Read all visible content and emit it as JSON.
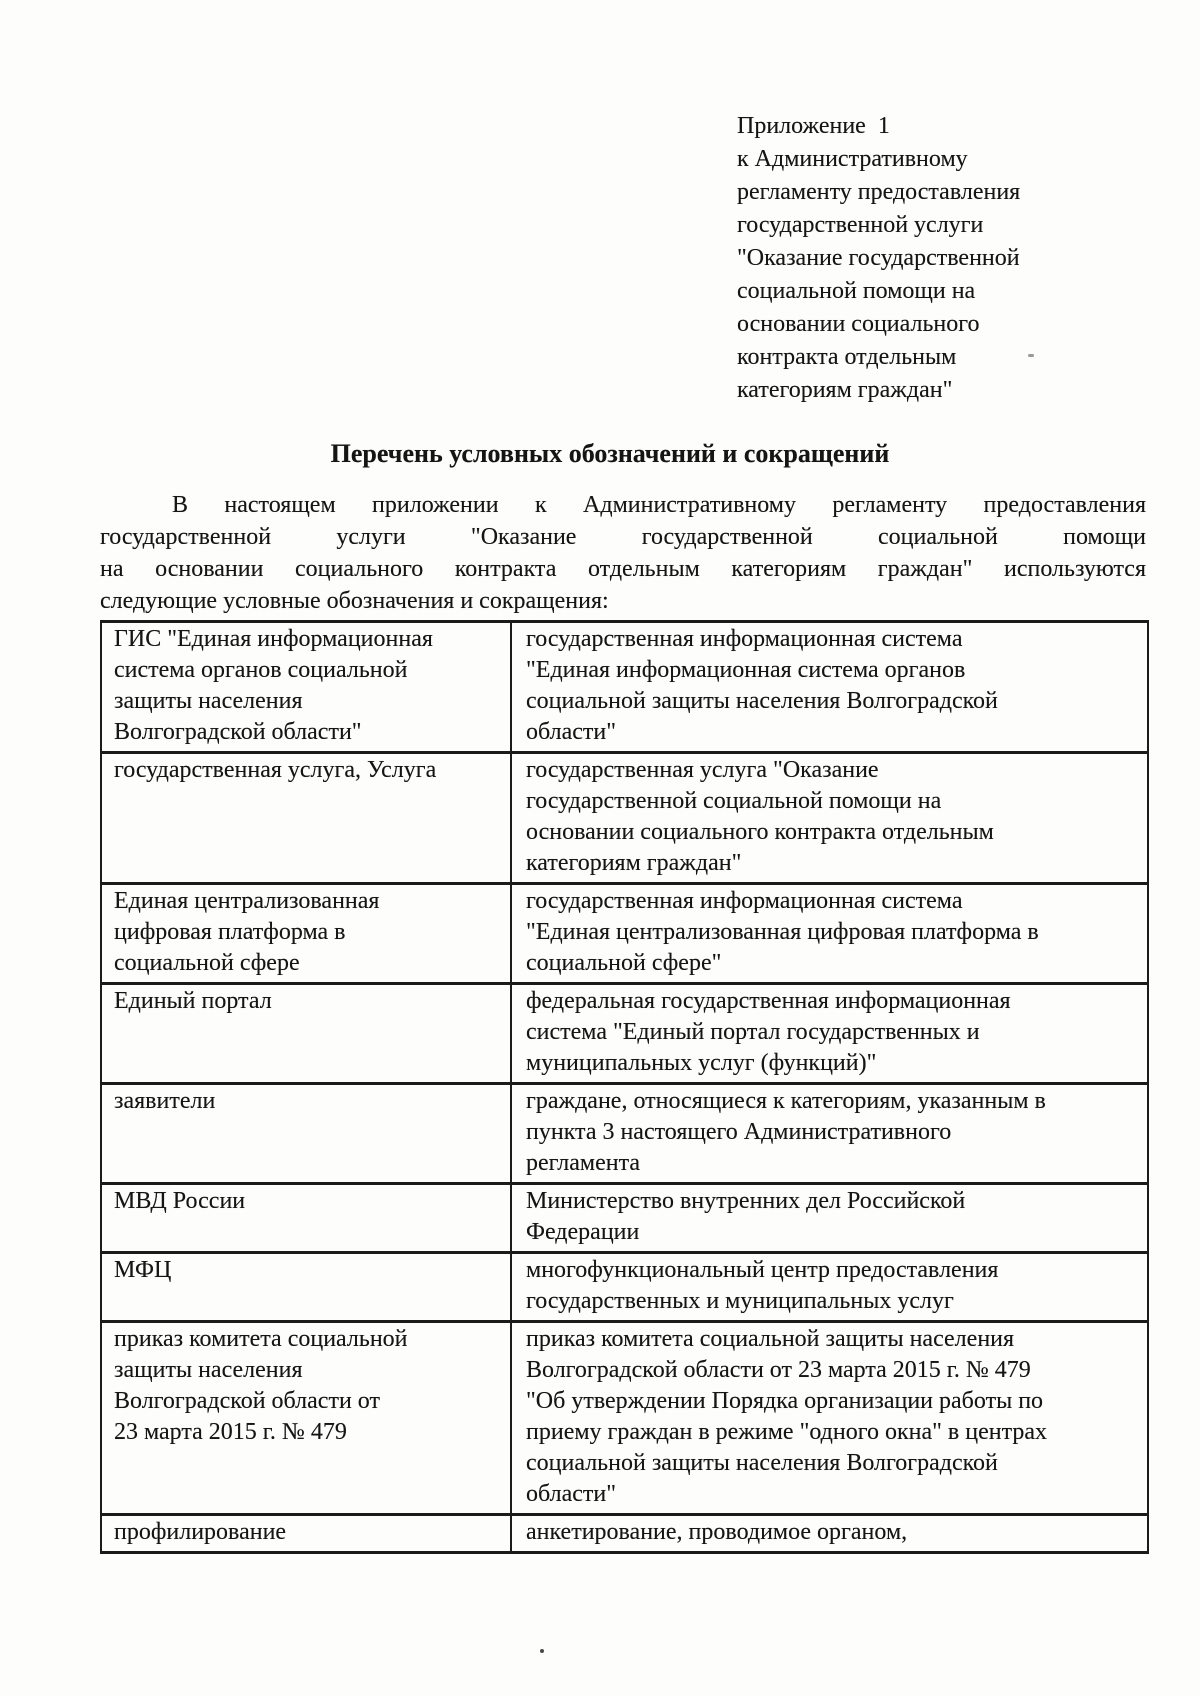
{
  "page": {
    "appendix": {
      "lines": [
        "Приложение  1",
        "к Административному",
        "регламенту предоставления",
        "государственной услуги",
        "\"Оказание государственной",
        "социальной помощи на",
        "основании социального",
        "контракта отдельным",
        "категориям граждан\""
      ]
    },
    "title": "Перечень условных обозначений и сокращений",
    "intro": {
      "lines": [
        "В настоящем приложении к Административному регламенту предоставления",
        "государственной услуги \"Оказание государственной социальной помощи",
        "на основании социального контракта отдельным категориям граждан\" используются",
        "следующие условные обозначения и сокращения:"
      ]
    },
    "table": {
      "rows": [
        {
          "term_lines": [
            "ГИС \"Единая информационная",
            "система органов социальной",
            "защиты населения",
            "Волгоградской области\""
          ],
          "definition_lines": [
            "государственная информационная система",
            "\"Единая информационная система органов",
            "социальной защиты населения Волгоградской",
            "области\""
          ]
        },
        {
          "term_lines": [
            "государственная услуга, Услуга"
          ],
          "definition_lines": [
            "государственная услуга \"Оказание",
            "государственной социальной помощи на",
            "основании социального контракта отдельным",
            "категориям граждан\""
          ]
        },
        {
          "term_lines": [
            "Единая централизованная",
            "цифровая платформа в",
            "социальной сфере"
          ],
          "definition_lines": [
            "государственная информационная система",
            "\"Единая централизованная цифровая платформа в",
            "социальной сфере\""
          ]
        },
        {
          "term_lines": [
            "Единый портал"
          ],
          "definition_lines": [
            "федеральная государственная информационная",
            "система \"Единый портал государственных и",
            "муниципальных услуг (функций)\""
          ]
        },
        {
          "term_lines": [
            "заявители"
          ],
          "definition_lines": [
            "граждане, относящиеся к категориям, указанным в",
            "пункта 3 настоящего Административного",
            "регламента"
          ]
        },
        {
          "term_lines": [
            "МВД России"
          ],
          "definition_lines": [
            "Министерство внутренних дел Российской",
            "Федерации"
          ]
        },
        {
          "term_lines": [
            "МФЦ"
          ],
          "definition_lines": [
            "многофункциональный центр предоставления",
            "государственных и муниципальных услуг"
          ]
        },
        {
          "term_lines": [
            "приказ комитета социальной",
            "защиты населения",
            "Волгоградской области от",
            "23 марта 2015 г. № 479"
          ],
          "definition_lines": [
            "приказ комитета социальной защиты населения",
            "Волгоградской области от 23 марта 2015 г. № 479",
            "\"Об утверждении Порядка организации работы по",
            "приему граждан в режиме \"одного окна\" в центрах",
            "социальной защиты населения Волгоградской",
            "области\""
          ]
        },
        {
          "term_lines": [
            "профилирование"
          ],
          "definition_lines": [
            "анкетирование, проводимое органом,"
          ]
        }
      ]
    }
  }
}
